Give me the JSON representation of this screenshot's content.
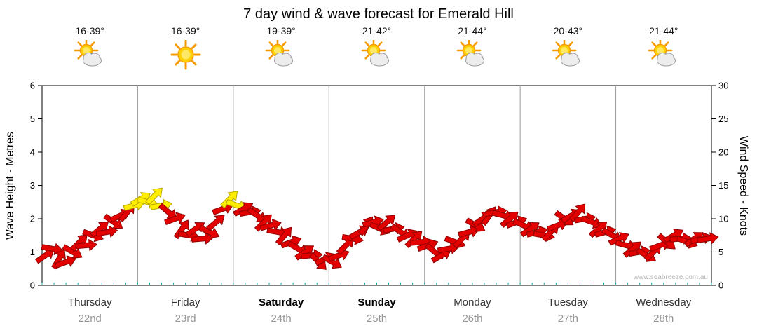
{
  "chart_data": {
    "type": "scatter",
    "subtype": "wind-direction-arrows",
    "title": "7 day wind & wave forecast for Emerald Hill",
    "ylabel_left": "Wave Height - Metres",
    "ylabel_right": "Wind Speed - Knots",
    "ylim_left": [
      0,
      6
    ],
    "ylim_right": [
      0,
      30
    ],
    "yticks_left": [
      0,
      1,
      2,
      3,
      4,
      5,
      6
    ],
    "yticks_right": [
      0,
      5,
      10,
      15,
      20,
      25,
      30
    ],
    "grid": "vertical lines at day boundaries",
    "legend": "none",
    "watermark": "www.seabreeze.com.au",
    "days": [
      {
        "name": "Thursday",
        "date": "22nd",
        "temp": "16-39°",
        "icon": "sun-cloud",
        "bold": false
      },
      {
        "name": "Friday",
        "date": "23rd",
        "temp": "16-39°",
        "icon": "sun",
        "bold": false
      },
      {
        "name": "Saturday",
        "date": "24th",
        "temp": "19-39°",
        "icon": "sun-cloud",
        "bold": true
      },
      {
        "name": "Sunday",
        "date": "25th",
        "temp": "21-42°",
        "icon": "sun-cloud",
        "bold": true
      },
      {
        "name": "Monday",
        "date": "26th",
        "temp": "21-44°",
        "icon": "sun-cloud",
        "bold": false
      },
      {
        "name": "Tuesday",
        "date": "27th",
        "temp": "20-43°",
        "icon": "sun-cloud",
        "bold": false
      },
      {
        "name": "Wednesday",
        "date": "28th",
        "temp": "21-44°",
        "icon": "sun-cloud",
        "bold": false
      }
    ],
    "points_per_day": 14,
    "series": [
      {
        "name": "Wind speed (knots) with direction arrows",
        "unit": "knots",
        "color_rule": "yellow if knots >= 12 else red",
        "knots": [
          4.5,
          5.5,
          4,
          3.5,
          5,
          6.5,
          6,
          7.5,
          8.5,
          8,
          9.5,
          10.5,
          11,
          12,
          13,
          12.5,
          13.5,
          12,
          11,
          10,
          8.5,
          7.5,
          8.5,
          7,
          8,
          9.5,
          11.5,
          13,
          12,
          11.5,
          11,
          10.5,
          9.5,
          9,
          8,
          7.5,
          6.5,
          5.5,
          5,
          4.5,
          3.5,
          4,
          3.5,
          4.5,
          6,
          7,
          8,
          9,
          9.5,
          8.5,
          9.5,
          8.5,
          8,
          7.5,
          7,
          6.5,
          6,
          5,
          4.5,
          5.5,
          6.5,
          7,
          8,
          9,
          10,
          10.5,
          11,
          10.5,
          10,
          9.5,
          9,
          8.5,
          8,
          7.5,
          8,
          9,
          10,
          10.5,
          11,
          10,
          9.5,
          8.5,
          8,
          7.5,
          7,
          6,
          5.5,
          5,
          4.5,
          5,
          6,
          6.5,
          7.5,
          7,
          6.5,
          7,
          7,
          7
        ],
        "direction_deg": [
          35,
          -10,
          60,
          20,
          -30,
          45,
          5,
          -20,
          40,
          10,
          -35,
          25,
          50,
          15,
          30,
          -15,
          45,
          10,
          -40,
          20,
          55,
          -10,
          35,
          5,
          -25,
          40,
          20,
          45,
          -20,
          30,
          10,
          -35,
          45,
          15,
          -10,
          50,
          20,
          -30,
          35,
          5,
          -45,
          25,
          -30,
          20,
          45,
          -10,
          30,
          55,
          15,
          -25,
          40,
          10,
          -35,
          25,
          45,
          5,
          20,
          -40,
          30,
          10,
          -20,
          45,
          15,
          -30,
          35,
          55,
          10,
          -15,
          40,
          20,
          -25,
          35,
          15,
          -10,
          45,
          20,
          -35,
          30,
          50,
          10,
          -20,
          40,
          15,
          -30,
          25,
          -15,
          40,
          10,
          -30,
          45,
          20,
          -40,
          30,
          5,
          -20,
          35,
          15,
          10
        ]
      }
    ]
  },
  "colors": {
    "arrow_red": "#e30000",
    "arrow_red_stroke": "#8f0000",
    "arrow_yellow": "#ffee00",
    "arrow_yellow_stroke": "#b7a700",
    "grid": "#9a9a9a",
    "axis": "#000000",
    "minor_tick": "#21a8a8",
    "date_text": "#979797",
    "sun": "#ffd000",
    "cloud": "#ededed"
  }
}
